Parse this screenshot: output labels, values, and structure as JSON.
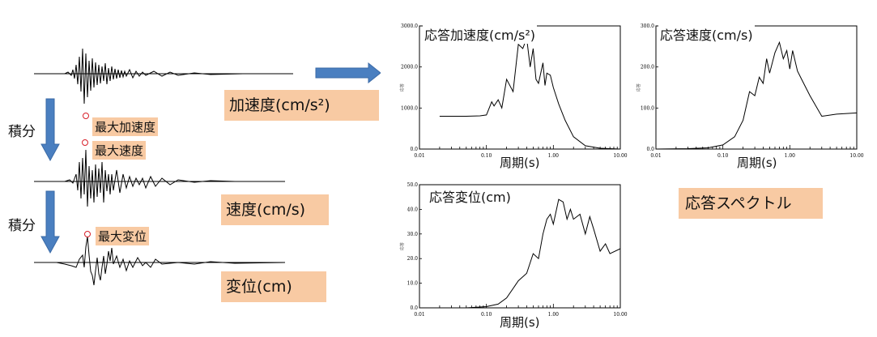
{
  "waveforms": {
    "acceleration_label": "加速度(cm/s²)",
    "velocity_label": "速度(cm/s)",
    "displacement_label": "変位(cm)",
    "max_acceleration": "最大加速度",
    "max_velocity": "最大速度",
    "max_displacement": "最大変位",
    "integrate_1": "積分",
    "integrate_2": "積分"
  },
  "spectrum_label": "応答スペクトル",
  "colors": {
    "label_bg": "#f8caa3",
    "arrow": "#4a7fc0",
    "marker": "#d8202a"
  },
  "chart_data": [
    {
      "type": "line",
      "title": "応答加速度(cm/s²)",
      "xlabel": "周期(s)",
      "ylabel": "応答",
      "x_scale": "log",
      "xlim": [
        0.01,
        10.0
      ],
      "ylim": [
        0,
        3000
      ],
      "xticks": [
        "0.01",
        "0.10",
        "1.00",
        "10.00"
      ],
      "yticks": [
        "0.0",
        "1000.0",
        "2000.0",
        "3000.0"
      ],
      "x": [
        0.02,
        0.05,
        0.08,
        0.1,
        0.12,
        0.13,
        0.15,
        0.17,
        0.2,
        0.25,
        0.3,
        0.35,
        0.4,
        0.45,
        0.5,
        0.55,
        0.6,
        0.7,
        0.75,
        0.8,
        0.9,
        1.0,
        1.2,
        1.5,
        2.0,
        3.0,
        5.0,
        10.0
      ],
      "y": [
        800,
        800,
        810,
        830,
        1150,
        1050,
        1200,
        1000,
        1700,
        1400,
        2550,
        2450,
        2700,
        2000,
        2450,
        1700,
        1600,
        2100,
        1550,
        1850,
        1800,
        1500,
        1100,
        700,
        300,
        80,
        20,
        0
      ]
    },
    {
      "type": "line",
      "title": "応答速度(cm/s)",
      "xlabel": "周期(s)",
      "ylabel": "応答",
      "x_scale": "log",
      "xlim": [
        0.01,
        10.0
      ],
      "ylim": [
        0,
        300
      ],
      "xticks": [
        "0.01",
        "0.10",
        "1.00",
        "10.00"
      ],
      "yticks": [
        "0.0",
        "100.0",
        "200.0",
        "300.0"
      ],
      "x": [
        0.01,
        0.03,
        0.06,
        0.1,
        0.15,
        0.2,
        0.25,
        0.3,
        0.35,
        0.4,
        0.45,
        0.5,
        0.6,
        0.7,
        0.8,
        0.9,
        1.0,
        1.1,
        1.3,
        1.5,
        2.0,
        3.0,
        5.0,
        10.0
      ],
      "y": [
        0,
        1,
        3,
        10,
        30,
        70,
        140,
        130,
        175,
        160,
        220,
        185,
        235,
        260,
        220,
        240,
        195,
        240,
        190,
        170,
        130,
        80,
        85,
        88
      ]
    },
    {
      "type": "line",
      "title": "応答変位(cm)",
      "xlabel": "周期(s)",
      "ylabel": "応答",
      "x_scale": "log",
      "xlim": [
        0.01,
        10.0
      ],
      "ylim": [
        0,
        50
      ],
      "xticks": [
        "0.01",
        "0.10",
        "1.00",
        "10.00"
      ],
      "yticks": [
        "0.0",
        "10.0",
        "20.0",
        "30.0",
        "40.0",
        "50.0"
      ],
      "x": [
        0.05,
        0.1,
        0.15,
        0.2,
        0.3,
        0.4,
        0.5,
        0.6,
        0.7,
        0.8,
        0.9,
        1.0,
        1.2,
        1.4,
        1.6,
        1.8,
        2.0,
        2.5,
        3.0,
        3.5,
        4.0,
        5.0,
        6.0,
        7.0,
        10.0
      ],
      "y": [
        0,
        0.5,
        1.5,
        4,
        11,
        14,
        22,
        20,
        30,
        36,
        38,
        34,
        44,
        43,
        36,
        40,
        36,
        38,
        30,
        37,
        32,
        23,
        26,
        22,
        24
      ]
    }
  ]
}
